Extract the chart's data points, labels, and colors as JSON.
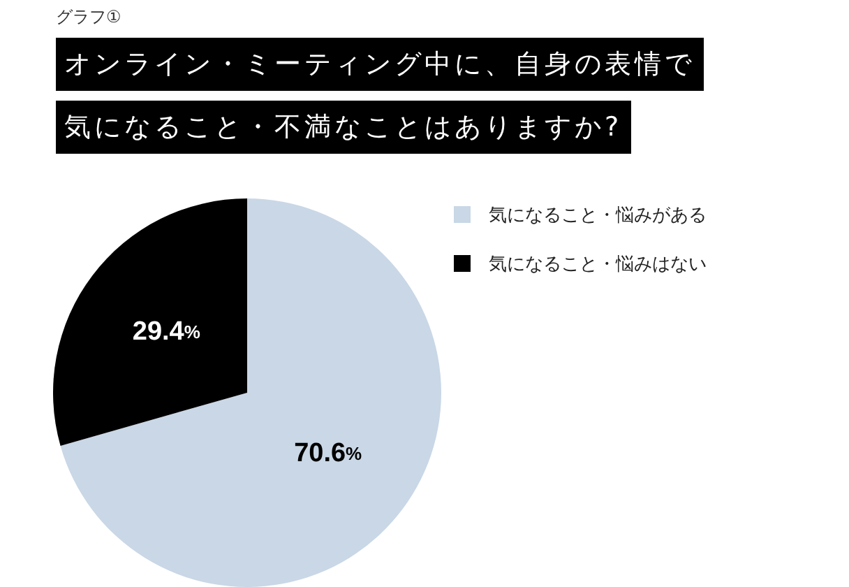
{
  "chart_data": {
    "type": "pie",
    "annotations": [
      "グラフ①"
    ],
    "title": "オンライン・ミーティング中に、自身の表情で気になること・不満なことはありますか?",
    "categories": [
      "気になること・悩みがある",
      "気になること・悩みはない"
    ],
    "values": [
      70.6,
      29.4
    ],
    "colors": [
      "#c9d7e6",
      "#000000"
    ],
    "value_labels": [
      "70.6%",
      "29.4%"
    ],
    "legend": "top right"
  }
}
